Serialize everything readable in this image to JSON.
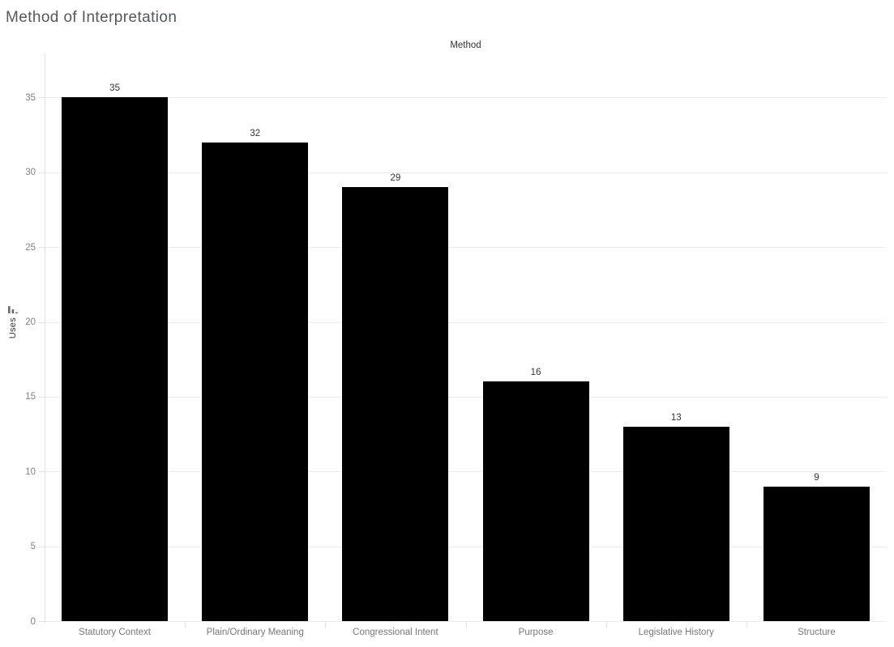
{
  "title": "Method of Interpretation",
  "column_header": "Method",
  "y_axis": {
    "label": "Uses",
    "sort_icon": "sort-descending-icon",
    "tick_labels": [
      "0",
      "5",
      "10",
      "15",
      "20",
      "25",
      "30",
      "35"
    ]
  },
  "colors": {
    "bar": "#000000",
    "title_text": "#54585e",
    "header_text": "#333333",
    "value_label_text": "#333333",
    "tick_label_text": "#818181",
    "category_label_text": "#787878",
    "gridline": "#ececec",
    "axis_line": "#e1e1e1",
    "background": "#ffffff"
  },
  "chart_data": {
    "type": "bar",
    "title": "Method of Interpretation",
    "xlabel": "Method",
    "ylabel": "Uses",
    "categories": [
      "Statutory Context",
      "Plain/Ordinary Meaning",
      "Congressional Intent",
      "Purpose",
      "Legislative History",
      "Structure"
    ],
    "values": [
      35,
      32,
      29,
      16,
      13,
      9
    ],
    "yticks": [
      0,
      5,
      10,
      15,
      20,
      25,
      30,
      35
    ],
    "ylim": [
      0,
      38
    ],
    "grid": "horizontal",
    "legend": "none",
    "sort_order": "descending",
    "bar_color": "#000000",
    "data_labels_shown": true
  }
}
